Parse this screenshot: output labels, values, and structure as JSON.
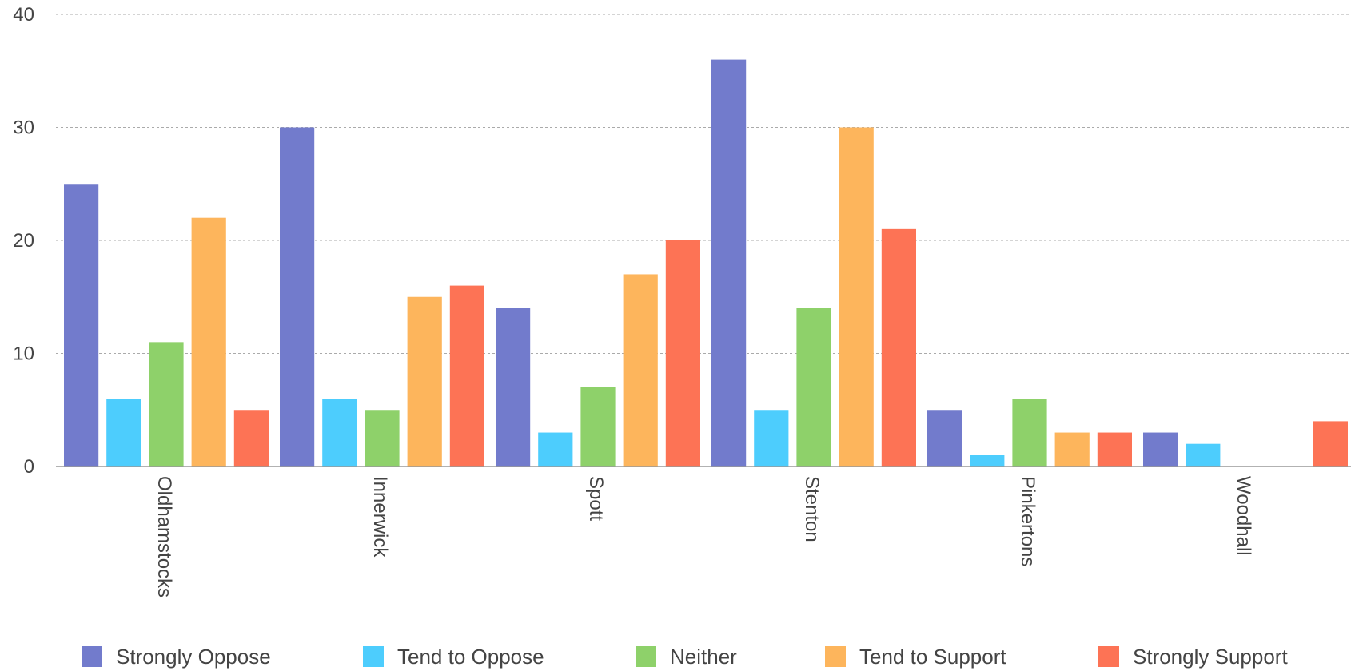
{
  "chart_data": {
    "type": "bar",
    "categories": [
      "Oldhamstocks",
      "Innerwick",
      "Spott",
      "Stenton",
      "Pinkertons",
      "Woodhall"
    ],
    "series": [
      {
        "name": "Strongly Oppose",
        "color": "#727bcc",
        "values": [
          25,
          30,
          14,
          36,
          5,
          3
        ]
      },
      {
        "name": "Tend to Oppose",
        "color": "#4dcdfd",
        "values": [
          6,
          6,
          3,
          5,
          1,
          2
        ]
      },
      {
        "name": "Neither",
        "color": "#8ed16a",
        "values": [
          11,
          5,
          7,
          14,
          6,
          0
        ]
      },
      {
        "name": "Tend to Support",
        "color": "#fdb55c",
        "values": [
          22,
          15,
          17,
          30,
          3,
          0
        ]
      },
      {
        "name": "Strongly Support",
        "color": "#fd7355",
        "values": [
          5,
          16,
          20,
          21,
          3,
          4
        ]
      }
    ],
    "yticks": [
      0,
      10,
      20,
      30,
      40
    ],
    "ylim": [
      0,
      40
    ],
    "grid": true,
    "legend_position": "bottom",
    "title": "",
    "xlabel": "",
    "ylabel": ""
  }
}
